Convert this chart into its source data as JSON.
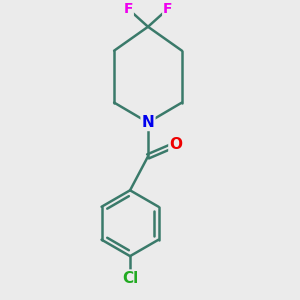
{
  "bg_color": "#ebebeb",
  "bond_color": "#3a7a6a",
  "bond_width": 1.8,
  "atom_colors": {
    "N": "#0000ee",
    "O": "#ee0000",
    "F": "#ee00ee",
    "Cl": "#22aa22"
  },
  "font_size_atom": 11,
  "font_size_small": 10,
  "scale": 1.0
}
